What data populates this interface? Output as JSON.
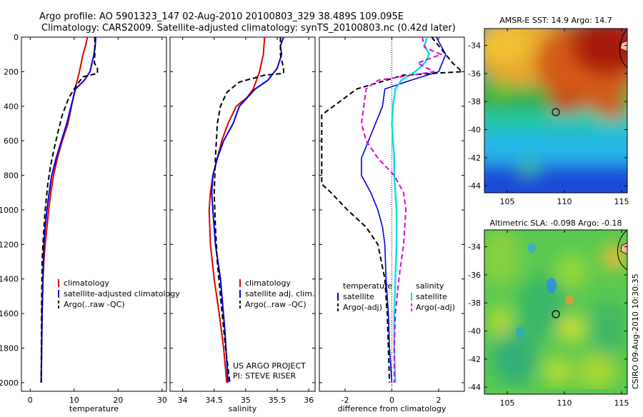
{
  "header": {
    "line1": "Argo profile: AO 5901323_147 02-Aug-2010 20100803_329 38.489S 109.095E",
    "line2": "Climatology: CARS2009. Satellite-adjusted climatology: synTS_20100803.nc (0.42d later)"
  },
  "colors": {
    "climatology": "#e00000",
    "satellite": "#0000e0",
    "argo": "#000000",
    "salinity_satellite": "#00e0e0",
    "salinity_argo": "#e000e0"
  },
  "chart_data": [
    {
      "type": "line",
      "xlabel": "temperature",
      "ylabel": "",
      "xlim": [
        -2,
        31
      ],
      "ylim": [
        2050,
        0
      ],
      "xticks": [
        "0",
        "10",
        "20",
        "30"
      ],
      "yticks": [
        "0",
        "200",
        "400",
        "600",
        "800",
        "1000",
        "1200",
        "1400",
        "1600",
        "1800",
        "2000"
      ],
      "legend": [
        "climatology",
        "satellite-adjusted climatology",
        "Argo(..raw -QC)"
      ],
      "series": [
        {
          "name": "climatology",
          "style": "solid",
          "x": [
            13.0,
            12.6,
            12.0,
            11.2,
            10.2,
            9.4,
            8.6,
            7.3,
            6.2,
            5.3,
            4.7,
            4.2,
            3.8,
            3.4,
            3.1,
            2.9,
            2.7,
            2.6,
            2.5
          ],
          "y": [
            0,
            50,
            100,
            200,
            300,
            400,
            500,
            600,
            700,
            800,
            900,
            1000,
            1100,
            1200,
            1300,
            1400,
            1600,
            1800,
            2000
          ]
        },
        {
          "name": "satellite-adjusted climatology",
          "style": "solid",
          "x": [
            14.9,
            14.8,
            14.5,
            13.6,
            12.3,
            10.3,
            9.3,
            8.3,
            7.1,
            5.9,
            4.9,
            4.3,
            3.8,
            3.4,
            3.1,
            2.9,
            2.7,
            2.5
          ],
          "y": [
            0,
            50,
            100,
            200,
            250,
            300,
            400,
            500,
            600,
            700,
            800,
            900,
            1000,
            1100,
            1200,
            1400,
            1600,
            2000
          ]
        },
        {
          "name": "Argo(..raw -QC)",
          "style": "dashed",
          "x": [
            14.7,
            14.7,
            14.6,
            15.3,
            15.3,
            12.0,
            10.5,
            8.8,
            7.3,
            6.3,
            5.4,
            4.6,
            4.0,
            3.4,
            3.0,
            2.7,
            2.6,
            2.5
          ],
          "y": [
            0,
            100,
            150,
            180,
            210,
            230,
            280,
            350,
            450,
            550,
            650,
            750,
            850,
            1000,
            1150,
            1300,
            1550,
            2000
          ]
        }
      ]
    },
    {
      "type": "line",
      "xlabel": "salinity",
      "ylabel": "",
      "xlim": [
        33.8,
        36.1
      ],
      "ylim": [
        2050,
        0
      ],
      "xticks": [
        "34",
        "34.5",
        "35",
        "35.5",
        "36"
      ],
      "legend": [
        "climatology",
        "satellite adj. clim.",
        "Argo(..raw -QC)"
      ],
      "annotations": [
        "US ARGO PROJECT",
        "PI: STEVE RISER"
      ],
      "series": [
        {
          "name": "climatology",
          "style": "solid",
          "x": [
            35.3,
            35.28,
            35.22,
            35.12,
            35.02,
            34.85,
            34.72,
            34.62,
            34.55,
            34.48,
            34.44,
            34.42,
            34.44,
            34.5,
            34.58,
            34.65,
            34.7
          ],
          "y": [
            0,
            100,
            200,
            300,
            350,
            400,
            500,
            600,
            700,
            800,
            900,
            1000,
            1200,
            1400,
            1600,
            1800,
            2000
          ]
        },
        {
          "name": "satellite adj. clim.",
          "style": "solid",
          "x": [
            35.6,
            35.55,
            35.57,
            35.5,
            35.35,
            35.15,
            34.9,
            34.8,
            34.65,
            34.55,
            34.48,
            34.46,
            34.48,
            34.52,
            34.6,
            34.67,
            34.72
          ],
          "y": [
            0,
            50,
            100,
            180,
            250,
            300,
            400,
            500,
            600,
            700,
            800,
            900,
            1000,
            1200,
            1400,
            1700,
            2000
          ]
        },
        {
          "name": "Argo(..raw -QC)",
          "style": "dashed",
          "x": [
            35.55,
            35.55,
            35.6,
            35.6,
            35.3,
            34.9,
            34.7,
            34.6,
            34.55,
            34.52,
            34.5,
            34.52,
            34.55,
            34.6,
            34.68,
            34.75
          ],
          "y": [
            0,
            100,
            180,
            210,
            220,
            260,
            320,
            400,
            500,
            700,
            900,
            1100,
            1300,
            1500,
            1800,
            2000
          ]
        }
      ]
    },
    {
      "type": "line",
      "xlabel": "difference from climatology",
      "ylabel": "",
      "xlim": [
        -3.1,
        3.1
      ],
      "ylim": [
        2050,
        0
      ],
      "xticks": [
        "-2",
        "0",
        "2"
      ],
      "legend": [
        "temperature",
        "satellite",
        "Argo(-adj)",
        "salinity",
        "satellite",
        "Argo(-adj)"
      ],
      "series": [
        {
          "name": "temperature satellite",
          "style": "solid",
          "x": [
            1.9,
            2.1,
            2.3,
            2.0,
            0.8,
            -0.3,
            -0.4,
            -0.7,
            -1.0,
            -1.3,
            -1.3,
            -0.9,
            -0.6,
            -0.4,
            -0.3,
            -0.25,
            -0.15,
            -0.1,
            0.0
          ],
          "y": [
            0,
            50,
            100,
            200,
            250,
            300,
            400,
            500,
            600,
            700,
            800,
            900,
            1000,
            1100,
            1200,
            1400,
            1600,
            1800,
            2000
          ]
        },
        {
          "name": "temperature Argo(-adj)",
          "style": "dashed",
          "x": [
            1.7,
            2.3,
            2.6,
            3.0,
            0.5,
            -1.5,
            -3.0,
            -3.0,
            -3.0,
            -3.0,
            -2.6,
            -1.9,
            -1.1,
            -0.6,
            -0.3,
            -0.2,
            -0.15,
            -0.1
          ],
          "y": [
            0,
            100,
            150,
            200,
            220,
            300,
            450,
            600,
            700,
            850,
            900,
            1000,
            1100,
            1200,
            1400,
            1600,
            1800,
            2000
          ]
        },
        {
          "name": "salinity satellite",
          "style": "solid",
          "x": [
            1.5,
            1.4,
            1.6,
            1.4,
            1.0,
            0.4,
            0.15,
            0.05,
            0.0,
            0.05,
            0.1,
            0.1,
            0.15,
            0.2,
            0.2,
            0.15,
            0.1,
            0.1,
            0.15
          ],
          "y": [
            0,
            50,
            100,
            150,
            200,
            250,
            300,
            400,
            500,
            600,
            700,
            800,
            900,
            1000,
            1200,
            1400,
            1600,
            1800,
            2000
          ]
        },
        {
          "name": "salinity Argo(-adj)",
          "style": "dashed",
          "x": [
            1.3,
            1.4,
            2.1,
            1.1,
            1.8,
            -0.6,
            -1.1,
            -1.2,
            -1.3,
            -1.1,
            -0.6,
            0.1,
            0.5,
            0.6,
            0.5,
            0.3,
            0.15,
            0.1,
            0.1
          ],
          "y": [
            0,
            60,
            100,
            150,
            200,
            250,
            300,
            400,
            500,
            600,
            700,
            800,
            900,
            1000,
            1200,
            1400,
            1600,
            1800,
            2000
          ]
        }
      ]
    },
    {
      "type": "heatmap",
      "title": "AMSR-E SST: 14.9 Argo: 14.7",
      "xticks": [
        "105",
        "110",
        "115"
      ],
      "yticks": [
        "-34",
        "-36",
        "-38",
        "-40",
        "-42",
        "-44"
      ],
      "xlim": [
        103,
        115.5
      ],
      "ylim": [
        -44.5,
        -32.8
      ],
      "marker": {
        "lon": 109.1,
        "lat": -38.5
      }
    },
    {
      "type": "heatmap",
      "title": "Altimetric SLA: -0.098 Argo: -0.18",
      "xticks": [
        "105",
        "110",
        "115"
      ],
      "yticks": [
        "-34",
        "-36",
        "-38",
        "-40",
        "-42",
        "-44"
      ],
      "xlim": [
        103,
        115.5
      ],
      "ylim": [
        -44.5,
        -32.8
      ],
      "marker": {
        "lon": 109.1,
        "lat": -38.5
      }
    }
  ],
  "footer": {
    "stamp": "CSIRO 09-Aug-2010 10:30:35"
  }
}
